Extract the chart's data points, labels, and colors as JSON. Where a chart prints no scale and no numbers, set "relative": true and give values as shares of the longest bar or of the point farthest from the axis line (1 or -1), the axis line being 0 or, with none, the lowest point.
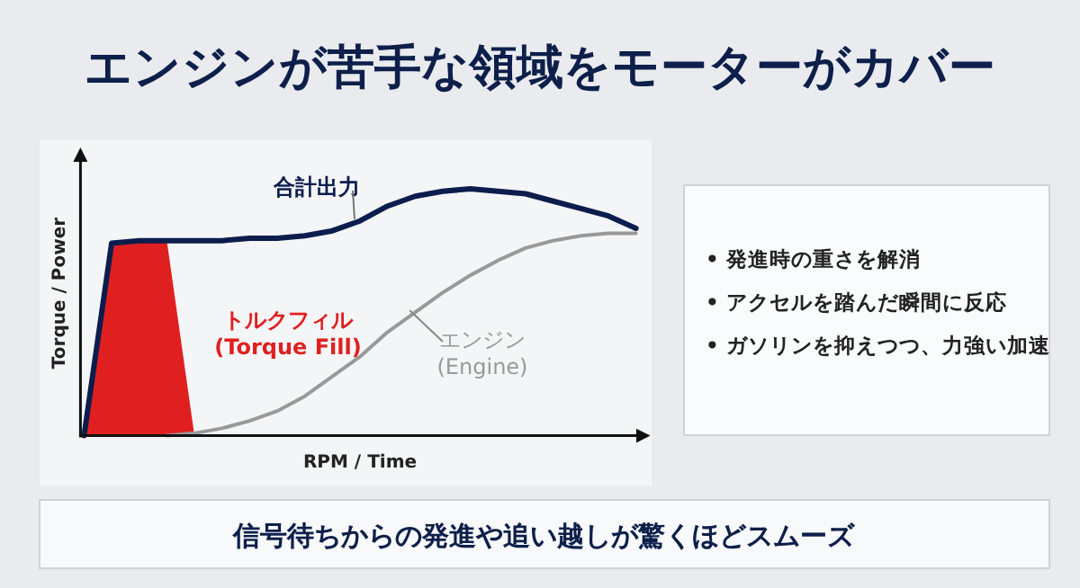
{
  "chart_data": [
    {
      "type": "line",
      "title": "エンジンが苦手な領域をモーターがカバー",
      "xlabel": "RPM / Time",
      "ylabel": "Torque / Power",
      "relative": true,
      "categories": [
        null,
        null,
        null,
        null,
        null,
        null,
        null,
        null,
        null,
        null,
        null,
        null,
        null,
        null,
        null,
        null,
        null,
        null,
        null,
        null,
        null
      ],
      "series": [
        {
          "name": "合計出力",
          "color": "#0c1d4d",
          "values": [
            0,
            0.78,
            0.79,
            0.79,
            0.79,
            0.79,
            0.8,
            0.8,
            0.81,
            0.83,
            0.87,
            0.93,
            0.97,
            0.99,
            1,
            0.99,
            0.98,
            0.95,
            0.92,
            0.89,
            0.84
          ]
        },
        {
          "name": "トルクフィル\n(Torque Fill)",
          "type": "area",
          "color": "#e02020",
          "values": [
            0,
            0.78,
            0.79,
            0.79,
            0,
            null,
            null,
            null,
            null,
            null,
            null,
            null,
            null,
            null,
            null,
            null,
            null,
            null,
            null,
            null,
            null
          ]
        },
        {
          "name": "エンジン\n(Engine)",
          "color": "#999999",
          "values": [
            null,
            null,
            null,
            0,
            0.01,
            0.03,
            0.06,
            0.1,
            0.16,
            0.24,
            0.32,
            0.42,
            0.5,
            0.58,
            0.65,
            0.71,
            0.76,
            0.79,
            0.81,
            0.82,
            0.82
          ]
        }
      ],
      "annotations": [
        "信号待ちからの発進や追い越しが驚くほどスムーズ"
      ]
    },
    {
      "type": "other",
      "annotations": [
        "• 発進時の重さを解消",
        "• アクセルを踏んだ瞬間に反応",
        "• ガソリンを抑えつつ、力強い加速"
      ]
    }
  ]
}
